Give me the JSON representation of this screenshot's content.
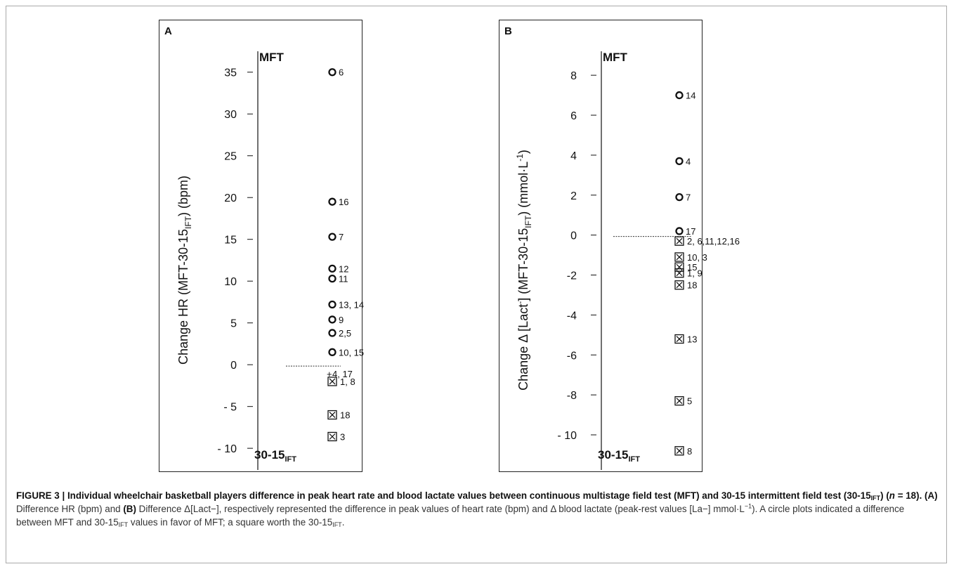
{
  "chart_data": [
    {
      "type": "scatter",
      "panel_label": "A",
      "top_label": "MFT",
      "bottom_label": "30-15",
      "bottom_label_sub": "IFT",
      "ylabel_parts": [
        "Change HR (MFT-30-15",
        "IFT",
        ") (bpm)"
      ],
      "y_ticks": [
        35,
        30,
        25,
        20,
        15,
        10,
        5,
        0,
        -5,
        -10
      ],
      "y_tick_labels": [
        "35",
        "30",
        "25",
        "20",
        "15",
        "10",
        "5",
        "0",
        "- 5",
        "- 10"
      ],
      "ylim": [
        -11.5,
        37.5
      ],
      "reference_line": 0,
      "points": [
        {
          "marker": "circle",
          "y": 35,
          "label": "6"
        },
        {
          "marker": "circle",
          "y": 19.5,
          "label": "16"
        },
        {
          "marker": "circle",
          "y": 15.3,
          "label": "7"
        },
        {
          "marker": "circle",
          "y": 11.5,
          "label": "12"
        },
        {
          "marker": "circle",
          "y": 10.3,
          "label": "11"
        },
        {
          "marker": "circle",
          "y": 7.2,
          "label": "13, 14"
        },
        {
          "marker": "circle",
          "y": 5.4,
          "label": "9"
        },
        {
          "marker": "circle",
          "y": 3.8,
          "label": "2,5"
        },
        {
          "marker": "circle",
          "y": 1.5,
          "label": "10, 15"
        },
        {
          "marker": "plus",
          "y": 0,
          "label": "4, 17"
        },
        {
          "marker": "square",
          "y": -2,
          "label": "1, 8"
        },
        {
          "marker": "square",
          "y": -6,
          "label": "18"
        },
        {
          "marker": "square",
          "y": -8.6,
          "label": "3"
        }
      ]
    },
    {
      "type": "scatter",
      "panel_label": "B",
      "top_label": "MFT",
      "bottom_label": "30-15",
      "bottom_label_sub": "IFT",
      "ylabel_parts": [
        "Change Δ [Lact",
        "-",
        "] (MFT-30-15",
        "IFT",
        ") (mmol·L",
        "-1",
        ")"
      ],
      "y_ticks": [
        8,
        6,
        4,
        2,
        0,
        -2,
        -4,
        -6,
        -8,
        -10
      ],
      "y_tick_labels": [
        "8",
        "6",
        "4",
        "2",
        "0",
        "-2",
        "-4",
        "-6",
        "-8",
        "- 10"
      ],
      "ylim": [
        -11.3,
        9.2
      ],
      "reference_line": 0,
      "points": [
        {
          "marker": "circle",
          "y": 7,
          "label": "14"
        },
        {
          "marker": "circle",
          "y": 3.7,
          "label": "4"
        },
        {
          "marker": "circle",
          "y": 1.9,
          "label": "7"
        },
        {
          "marker": "circle",
          "y": 0.2,
          "label": "17"
        },
        {
          "marker": "square",
          "y": -0.3,
          "label": "2, 6,11,12,16"
        },
        {
          "marker": "square",
          "y": -1.1,
          "label": "10, 3"
        },
        {
          "marker": "square",
          "y": -1.6,
          "label": "15"
        },
        {
          "marker": "square",
          "y": -1.9,
          "label": "1, 9"
        },
        {
          "marker": "square",
          "y": -2.5,
          "label": "18"
        },
        {
          "marker": "square",
          "y": -5.2,
          "label": "13"
        },
        {
          "marker": "square",
          "y": -8.3,
          "label": "5"
        },
        {
          "marker": "square",
          "y": -10.8,
          "label": "8"
        }
      ]
    }
  ],
  "caption": {
    "figure_label": "FIGURE 3 | Individual wheelchair basketball players difference in peak heart rate and blood lactate values between continuous multistage field test (MFT) and 30-15 intermittent field test (30-15",
    "sub_ift": "IFT",
    "title_tail": ") (",
    "n_var": "n",
    "n_eq": " = 18).",
    "part_a_label": " (A)",
    "part_a_text": " Difference HR (bpm) and ",
    "part_b_label": "(B)",
    "part_b_text": " Difference Δ[Lact−], respectively represented the difference in peak values of heart rate (bpm) and Δ blood lactate (peak-rest values [La−] mmol·L",
    "sup_minus1": "−1",
    "text_2": "). A circle plots indicated a difference between MFT and 30-15",
    "text_3": " values in favor of MFT; a square worth the 30-15",
    "text_end": "."
  }
}
